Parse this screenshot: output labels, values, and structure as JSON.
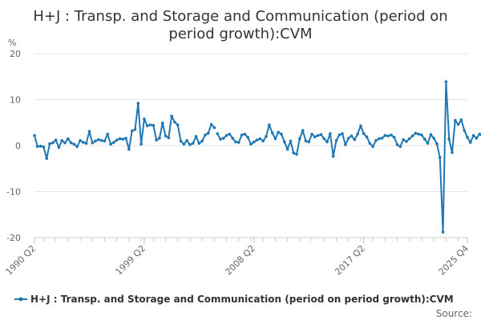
{
  "chart_data": {
    "type": "line",
    "title_lines": [
      "H+J : Transp. and Storage and Communication (period on",
      "period growth):CVM"
    ],
    "ylabel": "%",
    "xlabel": "",
    "ylim": [
      -20,
      20
    ],
    "yticks": [
      -20,
      -10,
      0,
      10,
      20
    ],
    "xlim": [
      1990.25,
      2025.75
    ],
    "xtick_labels": [
      "1990 Q2",
      "1999 Q2",
      "2008 Q2",
      "2017 Q2",
      "2025 Q4"
    ],
    "grid": "horizontal",
    "legend_position": "bottom",
    "source_label": "Source:",
    "color": "#1f77b4",
    "series": [
      {
        "name": "H+J : Transp. and Storage and Communication (period on period growth):CVM",
        "segments": [
          {
            "start": "1990 Q2",
            "values": [
              2.2,
              -0.2,
              -0.1,
              -0.3,
              -2.8,
              0.4,
              0.6,
              1.2,
              -0.4,
              1.1,
              0.6,
              1.5,
              0.6,
              0.3,
              -0.2,
              1.1,
              0.7,
              0.5,
              3.1,
              0.6,
              1.0,
              1.3,
              1.1,
              1.0,
              2.5,
              0.3,
              0.7,
              1.2,
              1.5,
              1.4,
              1.6,
              -0.8,
              3.2,
              3.5,
              9.2,
              0.3,
              5.8,
              4.3,
              4.5,
              4.4,
              1.2,
              1.6,
              4.9,
              2.1,
              1.7,
              6.4,
              5.1,
              4.5,
              1.0,
              0.3,
              1.1,
              0.2,
              0.5,
              2.0,
              0.5,
              1.0,
              2.3,
              2.7,
              4.6,
              3.9
            ]
          },
          {
            "start": "2005 Q2",
            "values": [
              2.6,
              1.4,
              1.6,
              2.2,
              2.5,
              1.6,
              0.8,
              0.7,
              2.3,
              2.5,
              1.8,
              0.3,
              0.8,
              1.2,
              1.5,
              1.0,
              2.0,
              4.5,
              2.8,
              1.5,
              2.9,
              2.5,
              0.8,
              -0.8,
              1.0,
              -1.6,
              -1.9,
              1.5,
              3.3,
              1.0,
              0.8,
              2.5,
              1.9,
              2.2,
              2.4,
              1.5,
              0.8,
              2.6,
              -2.3,
              1.1,
              2.3,
              2.6,
              0.2,
              1.6,
              2.1,
              1.3,
              2.5,
              4.3,
              2.6,
              1.9,
              0.5,
              -0.2,
              1.1,
              1.5,
              1.6,
              2.2,
              2.1,
              2.3,
              1.8,
              0.2,
              -0.2,
              1.3,
              0.9,
              1.5,
              2.1,
              2.7,
              2.5,
              2.3,
              1.4,
              0.5,
              2.4,
              1.6,
              0.4,
              -2.6,
              -18.8,
              13.9,
              1.4,
              -1.5,
              5.5,
              4.6,
              5.6,
              3.3,
              1.8,
              0.7,
              2.2,
              1.6,
              2.5,
              1.9,
              -0.4,
              0.5,
              1.9,
              2.6,
              -0.1,
              0.9,
              2.4,
              1.8,
              -0.1,
              0.5
            ]
          }
        ]
      }
    ]
  }
}
